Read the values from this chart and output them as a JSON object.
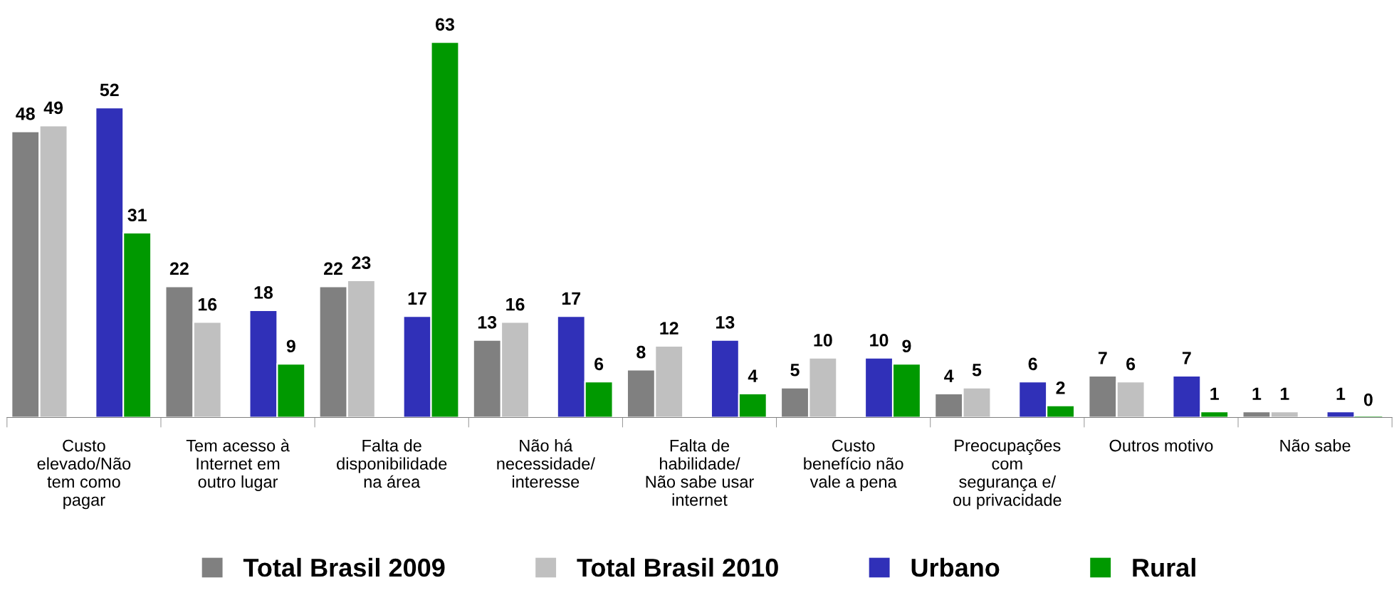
{
  "chart_data": {
    "type": "bar",
    "categories": [
      "Custo\nelevado/Não\ntem como\npagar",
      "Tem acesso à\nInternet em\noutro lugar",
      "Falta de\ndisponibilidade\nna área",
      "Não há\nnecessidade/\ninteresse",
      "Falta de\nhabilidade/\nNão sabe usar\ninternet",
      "Custo\nbenefício não\nvale a pena",
      "Preocupações\ncom\nsegurança e/\nou privacidade",
      "Outros motivo",
      "Não sabe"
    ],
    "series": [
      {
        "name": "Total Brasil 2009",
        "color": "#808080",
        "values": [
          48,
          22,
          22,
          13,
          8,
          5,
          4,
          7,
          1
        ]
      },
      {
        "name": "Total Brasil 2010",
        "color": "#c0c0c0",
        "values": [
          49,
          16,
          23,
          16,
          12,
          10,
          5,
          6,
          1
        ]
      },
      {
        "name": "Urbano",
        "color": "#3030b8",
        "values": [
          52,
          18,
          17,
          17,
          13,
          10,
          6,
          7,
          1
        ]
      },
      {
        "name": "Rural",
        "color": "#009900",
        "values": [
          31,
          9,
          63,
          6,
          4,
          9,
          2,
          1,
          0
        ]
      }
    ],
    "data_labels": true,
    "legend": "bottom",
    "grid": false
  }
}
